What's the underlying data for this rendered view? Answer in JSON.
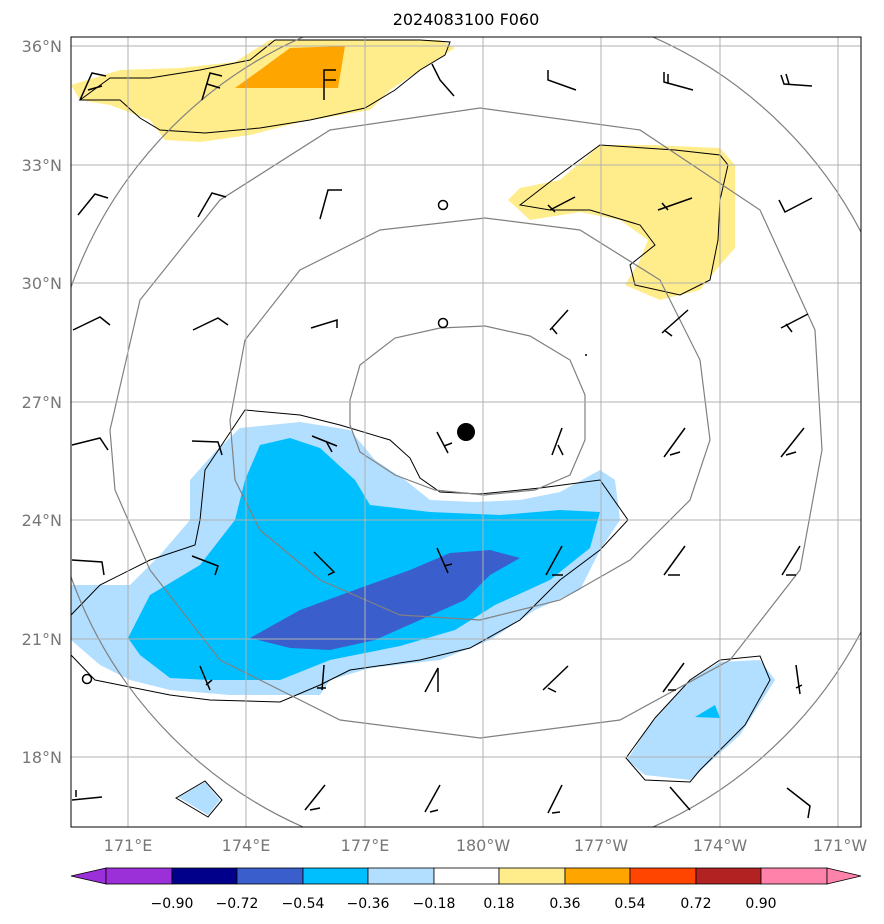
{
  "title": "2024083100 F060",
  "lat_ticks": [
    "36°N",
    "33°N",
    "30°N",
    "27°N",
    "24°N",
    "21°N",
    "18°N"
  ],
  "lon_ticks": [
    "171°E",
    "174°E",
    "177°E",
    "180°W",
    "177°W",
    "174°W",
    "171°W"
  ],
  "colorbar": {
    "labels": [
      "−0.90",
      "−0.72",
      "−0.54",
      "−0.36",
      "−0.18",
      "0.18",
      "0.36",
      "0.54",
      "0.72",
      "0.90"
    ],
    "colors": [
      "#9b30d9",
      "#00008b",
      "#3a5fcd",
      "#00bfff",
      "#b2dfff",
      "#ffffff",
      "#ffec8b",
      "#ffa500",
      "#ff4500",
      "#b22222",
      "#ff82ab"
    ]
  },
  "shading_colors": {
    "light_blue": "#b2dfff",
    "blue": "#00bfff",
    "dark_blue": "#3a5fcd",
    "light_yellow": "#ffec8b",
    "orange": "#ffa500"
  },
  "contour_color": "#808080",
  "storm_center_marker": "filled-circle"
}
